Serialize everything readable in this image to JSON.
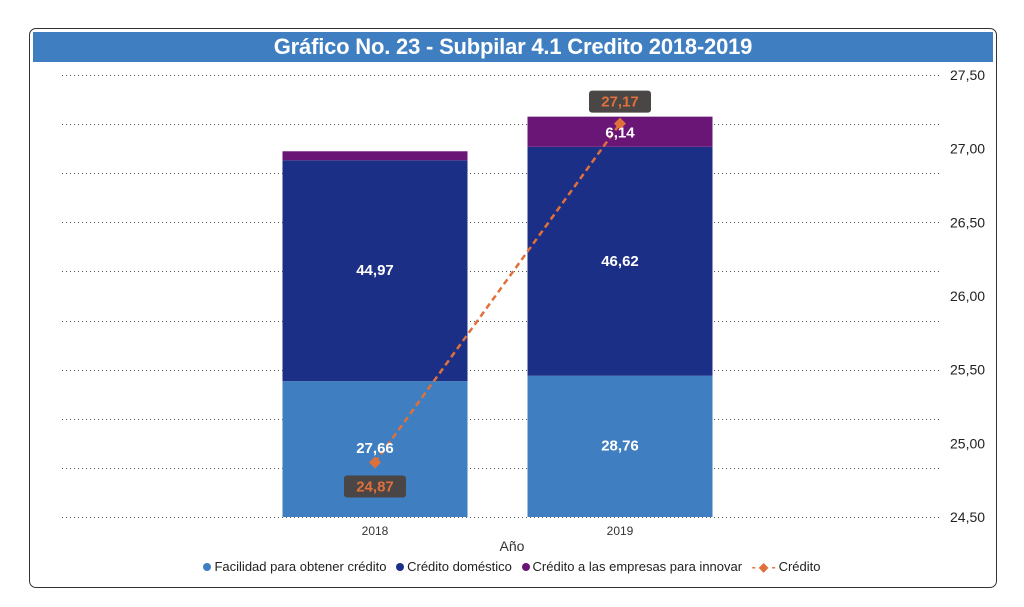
{
  "title": "Gráfico No. 23 - Subpilar 4.1 Credito 2018-2019",
  "colors": {
    "title_bg": "#3f7fc1",
    "facilidad": "#3f7fc1",
    "domestico": "#1c2f87",
    "innovar": "#6a1677",
    "credito_line": "#e0703a",
    "label_bg": "#4a4646"
  },
  "chart_data": {
    "type": "bar",
    "subtype": "stacked bar with line on secondary axis",
    "title": "Gráfico No. 23 - Subpilar 4.1 Credito 2018-2019",
    "xlabel": "Año",
    "ylabel": "",
    "categories": [
      "2018",
      "2019"
    ],
    "series": [
      {
        "name": "Facilidad para obtener crédito",
        "type": "bar",
        "axis": "primary",
        "values": [
          27.66,
          28.76
        ],
        "labels": [
          "27,66",
          "28,76"
        ]
      },
      {
        "name": "Crédito doméstico",
        "type": "bar",
        "axis": "primary",
        "values": [
          44.97,
          46.62
        ],
        "labels": [
          "44,97",
          "46,62"
        ]
      },
      {
        "name": "Crédito a las empresas para innovar",
        "type": "bar",
        "axis": "primary",
        "values": [
          1.84,
          6.14
        ],
        "labels": [
          "",
          "6,14"
        ]
      },
      {
        "name": "Crédito",
        "type": "line",
        "axis": "secondary",
        "values": [
          24.87,
          27.17
        ],
        "labels": [
          "24,87",
          "27,17"
        ]
      }
    ],
    "primary_axis": {
      "visible": false,
      "ylim": [
        0,
        90
      ],
      "gridline_step": 10
    },
    "secondary_axis": {
      "visible": true,
      "position": "right",
      "ylim": [
        24.5,
        27.5
      ],
      "ticks": [
        "24,50",
        "25,00",
        "25,50",
        "26,00",
        "26,50",
        "27,00",
        "27,50"
      ],
      "tick_values": [
        24.5,
        25.0,
        25.5,
        26.0,
        26.5,
        27.0,
        27.5
      ]
    },
    "grid": true,
    "grid_style": "dotted",
    "legend_position": "bottom"
  },
  "legend": [
    {
      "label": "Facilidad para obtener crédito",
      "marker": "dot",
      "color": "#3f7fc1"
    },
    {
      "label": "Crédito doméstico",
      "marker": "dot",
      "color": "#1c2f87"
    },
    {
      "label": "Crédito a las empresas para innovar",
      "marker": "dot",
      "color": "#6a1677"
    },
    {
      "label": "Crédito",
      "marker": "dashed-line-diamond",
      "color": "#e0703a"
    }
  ]
}
